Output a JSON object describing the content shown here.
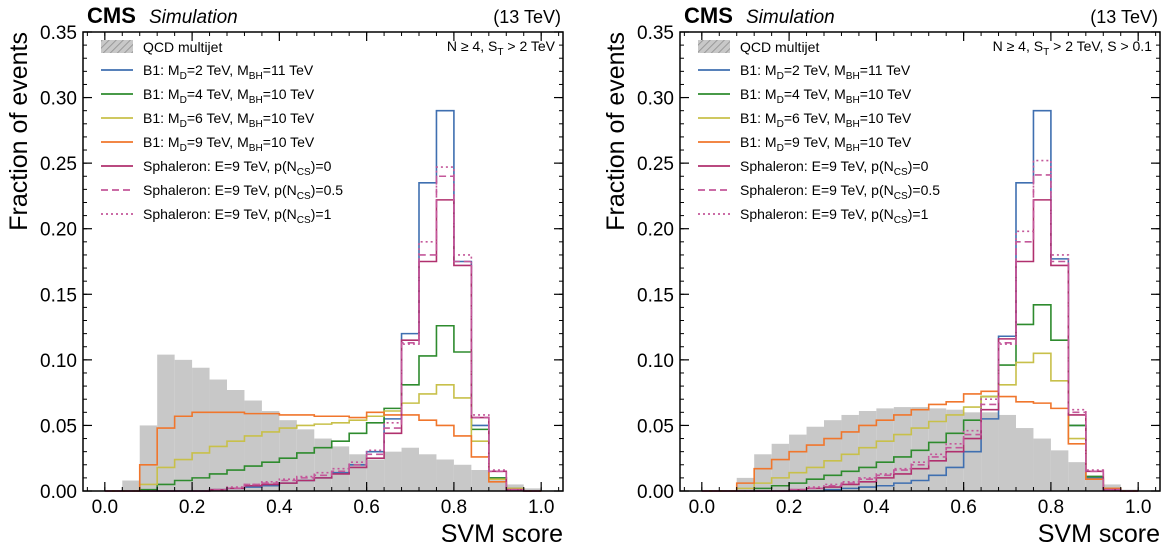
{
  "chart_data": [
    {
      "type": "histogram",
      "experiment": "CMS",
      "label": "Simulation",
      "energy": "(13 TeV)",
      "cut_label": "N ≥ 4, Sₜ > 2 TeV",
      "cut_parts": [
        {
          "t": "N ≥ 4, S",
          "s": null
        },
        {
          "t": "T",
          "s": "sub"
        },
        {
          "t": " > 2 TeV",
          "s": null
        }
      ],
      "xlabel": "SVM score",
      "ylabel": "Fraction of events",
      "xlim": [
        -0.05,
        1.05
      ],
      "ylim": [
        0,
        0.35
      ],
      "xticks": [
        "0.0",
        "0.2",
        "0.4",
        "0.6",
        "0.8",
        "1.0"
      ],
      "yticks": [
        "0.00",
        "0.05",
        "0.10",
        "0.15",
        "0.20",
        "0.25",
        "0.30",
        "0.35"
      ],
      "bin_edges": [
        0.0,
        0.04,
        0.08,
        0.12,
        0.16,
        0.2,
        0.24,
        0.28,
        0.32,
        0.36,
        0.4,
        0.44,
        0.48,
        0.52,
        0.56,
        0.6,
        0.64,
        0.68,
        0.72,
        0.76,
        0.8,
        0.84,
        0.88,
        0.92,
        0.96,
        1.0
      ],
      "background": {
        "name": "QCD multijet",
        "color": "#c8c8c8",
        "values": [
          0.0,
          0.008,
          0.05,
          0.104,
          0.1,
          0.094,
          0.085,
          0.077,
          0.069,
          0.061,
          0.054,
          0.047,
          0.04,
          0.034,
          0.028,
          0.024,
          0.03,
          0.033,
          0.028,
          0.024,
          0.02,
          0.016,
          0.01,
          0.005,
          0.002
        ]
      },
      "series": [
        {
          "name": "B1: M_D=2 TeV, M_BH=11 TeV",
          "label_parts": [
            {
              "t": "B1: M",
              "s": null
            },
            {
              "t": "D",
              "s": "sub"
            },
            {
              "t": "=2 TeV, M",
              "s": null
            },
            {
              "t": "BH",
              "s": "sub"
            },
            {
              "t": "=11 TeV",
              "s": null
            }
          ],
          "color": "#3f6fb0",
          "style": "solid",
          "values": [
            0.0,
            0.0,
            0.0,
            0.0,
            0.0,
            0.0,
            0.001,
            0.002,
            0.003,
            0.004,
            0.006,
            0.008,
            0.01,
            0.014,
            0.02,
            0.03,
            0.055,
            0.12,
            0.235,
            0.29,
            0.175,
            0.05,
            0.01,
            0.001,
            0.0
          ]
        },
        {
          "name": "B1: M_D=4 TeV, M_BH=10 TeV",
          "label_parts": [
            {
              "t": "B1: M",
              "s": null
            },
            {
              "t": "D",
              "s": "sub"
            },
            {
              "t": "=4 TeV, M",
              "s": null
            },
            {
              "t": "BH",
              "s": "sub"
            },
            {
              "t": "=10 TeV",
              "s": null
            }
          ],
          "color": "#2e8b2e",
          "style": "solid",
          "values": [
            0.0,
            0.0,
            0.001,
            0.005,
            0.008,
            0.01,
            0.013,
            0.016,
            0.019,
            0.022,
            0.025,
            0.029,
            0.033,
            0.038,
            0.044,
            0.052,
            0.063,
            0.081,
            0.103,
            0.126,
            0.106,
            0.047,
            0.01,
            0.002,
            0.0
          ]
        },
        {
          "name": "B1: M_D=6 TeV, M_BH=10 TeV",
          "label_parts": [
            {
              "t": "B1: M",
              "s": null
            },
            {
              "t": "D",
              "s": "sub"
            },
            {
              "t": "=6 TeV, M",
              "s": null
            },
            {
              "t": "BH",
              "s": "sub"
            },
            {
              "t": "=10 TeV",
              "s": null
            }
          ],
          "color": "#c8c04a",
          "style": "solid",
          "values": [
            0.0,
            0.0,
            0.005,
            0.018,
            0.024,
            0.029,
            0.034,
            0.038,
            0.042,
            0.045,
            0.048,
            0.05,
            0.051,
            0.052,
            0.054,
            0.057,
            0.061,
            0.067,
            0.074,
            0.081,
            0.071,
            0.038,
            0.009,
            0.002,
            0.0
          ]
        },
        {
          "name": "B1: M_D=9 TeV, M_BH=10 TeV",
          "label_parts": [
            {
              "t": "B1: M",
              "s": null
            },
            {
              "t": "D",
              "s": "sub"
            },
            {
              "t": "=9 TeV, M",
              "s": null
            },
            {
              "t": "BH",
              "s": "sub"
            },
            {
              "t": "=10 TeV",
              "s": null
            }
          ],
          "color": "#f0762c",
          "style": "solid",
          "values": [
            0.0,
            0.0,
            0.02,
            0.048,
            0.057,
            0.06,
            0.06,
            0.06,
            0.059,
            0.059,
            0.058,
            0.058,
            0.057,
            0.057,
            0.056,
            0.06,
            0.058,
            0.058,
            0.054,
            0.05,
            0.042,
            0.026,
            0.007,
            0.001,
            0.0
          ]
        },
        {
          "name": "Sphaleron: E=9 TeV, p(N_CS)=0",
          "label_parts": [
            {
              "t": "Sphaleron: E=9 TeV, p(N",
              "s": null
            },
            {
              "t": "CS",
              "s": "sub"
            },
            {
              "t": ")=0",
              "s": null
            }
          ],
          "color": "#b0306e",
          "style": "solid",
          "values": [
            0.0,
            0.0,
            0.0,
            0.0,
            0.0,
            0.0,
            0.001,
            0.002,
            0.004,
            0.005,
            0.006,
            0.008,
            0.01,
            0.013,
            0.018,
            0.025,
            0.044,
            0.115,
            0.175,
            0.222,
            0.172,
            0.056,
            0.015,
            0.001,
            0.0
          ]
        },
        {
          "name": "Sphaleron: E=9 TeV, p(N_CS)=0.5",
          "label_parts": [
            {
              "t": "Sphaleron: E=9 TeV, p(N",
              "s": null
            },
            {
              "t": "CS",
              "s": "sub"
            },
            {
              "t": ")=0.5",
              "s": null
            }
          ],
          "color": "#c4579a",
          "style": "dashed",
          "values": [
            0.0,
            0.0,
            0.0,
            0.0,
            0.0,
            0.0,
            0.001,
            0.002,
            0.005,
            0.006,
            0.008,
            0.01,
            0.012,
            0.015,
            0.02,
            0.028,
            0.048,
            0.113,
            0.18,
            0.24,
            0.175,
            0.056,
            0.015,
            0.001,
            0.0
          ]
        },
        {
          "name": "Sphaleron: E=9 TeV, p(N_CS)=1",
          "label_parts": [
            {
              "t": "Sphaleron: E=9 TeV, p(N",
              "s": null
            },
            {
              "t": "CS",
              "s": "sub"
            },
            {
              "t": ")=1",
              "s": null
            }
          ],
          "color": "#c4579a",
          "style": "dotted",
          "values": [
            0.0,
            0.0,
            0.0,
            0.0,
            0.0,
            0.0,
            0.001,
            0.003,
            0.005,
            0.007,
            0.009,
            0.011,
            0.014,
            0.017,
            0.022,
            0.031,
            0.052,
            0.112,
            0.19,
            0.247,
            0.18,
            0.058,
            0.016,
            0.001,
            0.0
          ]
        }
      ]
    },
    {
      "type": "histogram",
      "experiment": "CMS",
      "label": "Simulation",
      "energy": "(13 TeV)",
      "cut_label": "N ≥ 4, Sₜ > 2 TeV, S > 0.1",
      "cut_parts": [
        {
          "t": "N ≥ 4, S",
          "s": null
        },
        {
          "t": "T",
          "s": "sub"
        },
        {
          "t": " > 2 TeV, S > 0.1",
          "s": null
        }
      ],
      "xlabel": "SVM score",
      "ylabel": "Fraction of events",
      "xlim": [
        -0.05,
        1.05
      ],
      "ylim": [
        0,
        0.35
      ],
      "xticks": [
        "0.0",
        "0.2",
        "0.4",
        "0.6",
        "0.8",
        "1.0"
      ],
      "yticks": [
        "0.00",
        "0.05",
        "0.10",
        "0.15",
        "0.20",
        "0.25",
        "0.30",
        "0.35"
      ],
      "bin_edges": [
        0.0,
        0.04,
        0.08,
        0.12,
        0.16,
        0.2,
        0.24,
        0.28,
        0.32,
        0.36,
        0.4,
        0.44,
        0.48,
        0.52,
        0.56,
        0.6,
        0.64,
        0.68,
        0.72,
        0.76,
        0.8,
        0.84,
        0.88,
        0.92,
        0.96,
        1.0
      ],
      "background": {
        "name": "QCD multijet",
        "color": "#c8c8c8",
        "values": [
          0.0,
          0.0,
          0.01,
          0.028,
          0.036,
          0.043,
          0.049,
          0.054,
          0.058,
          0.061,
          0.063,
          0.064,
          0.064,
          0.063,
          0.062,
          0.06,
          0.06,
          0.058,
          0.048,
          0.04,
          0.031,
          0.022,
          0.012,
          0.005,
          0.001
        ]
      },
      "series": [
        {
          "name": "B1: M_D=2 TeV, M_BH=11 TeV",
          "label_parts": [
            {
              "t": "B1: M",
              "s": null
            },
            {
              "t": "D",
              "s": "sub"
            },
            {
              "t": "=2 TeV, M",
              "s": null
            },
            {
              "t": "BH",
              "s": "sub"
            },
            {
              "t": "=11 TeV",
              "s": null
            }
          ],
          "color": "#3f6fb0",
          "style": "solid",
          "values": [
            0.0,
            0.0,
            0.0,
            0.0,
            0.0,
            0.0,
            0.0,
            0.001,
            0.002,
            0.003,
            0.004,
            0.006,
            0.008,
            0.012,
            0.018,
            0.03,
            0.055,
            0.118,
            0.235,
            0.29,
            0.177,
            0.05,
            0.01,
            0.001,
            0.0
          ]
        },
        {
          "name": "B1: M_D=4 TeV, M_BH=10 TeV",
          "label_parts": [
            {
              "t": "B1: M",
              "s": null
            },
            {
              "t": "D",
              "s": "sub"
            },
            {
              "t": "=4 TeV, M",
              "s": null
            },
            {
              "t": "BH",
              "s": "sub"
            },
            {
              "t": "=10 TeV",
              "s": null
            }
          ],
          "color": "#2e8b2e",
          "style": "solid",
          "values": [
            0.0,
            0.0,
            0.0,
            0.002,
            0.004,
            0.006,
            0.009,
            0.012,
            0.015,
            0.018,
            0.022,
            0.026,
            0.031,
            0.037,
            0.044,
            0.054,
            0.072,
            0.096,
            0.127,
            0.142,
            0.115,
            0.05,
            0.011,
            0.002,
            0.0
          ]
        },
        {
          "name": "B1: M_D=6 TeV, M_BH=10 TeV",
          "label_parts": [
            {
              "t": "B1: M",
              "s": null
            },
            {
              "t": "D",
              "s": "sub"
            },
            {
              "t": "=6 TeV, M",
              "s": null
            },
            {
              "t": "BH",
              "s": "sub"
            },
            {
              "t": "=10 TeV",
              "s": null
            }
          ],
          "color": "#c8c04a",
          "style": "solid",
          "values": [
            0.0,
            0.0,
            0.002,
            0.006,
            0.01,
            0.014,
            0.018,
            0.023,
            0.028,
            0.033,
            0.038,
            0.043,
            0.048,
            0.053,
            0.058,
            0.064,
            0.072,
            0.081,
            0.098,
            0.105,
            0.084,
            0.04,
            0.009,
            0.002,
            0.0
          ]
        },
        {
          "name": "B1: M_D=9 TeV, M_BH=10 TeV",
          "label_parts": [
            {
              "t": "B1: M",
              "s": null
            },
            {
              "t": "D",
              "s": "sub"
            },
            {
              "t": "=9 TeV, M",
              "s": null
            },
            {
              "t": "BH",
              "s": "sub"
            },
            {
              "t": "=10 TeV",
              "s": null
            }
          ],
          "color": "#f0762c",
          "style": "solid",
          "values": [
            0.0,
            0.0,
            0.006,
            0.017,
            0.024,
            0.03,
            0.035,
            0.04,
            0.045,
            0.05,
            0.054,
            0.058,
            0.062,
            0.066,
            0.068,
            0.074,
            0.076,
            0.072,
            0.068,
            0.067,
            0.063,
            0.036,
            0.009,
            0.002,
            0.0
          ]
        },
        {
          "name": "Sphaleron: E=9 TeV, p(N_CS)=0",
          "label_parts": [
            {
              "t": "Sphaleron: E=9 TeV, p(N",
              "s": null
            },
            {
              "t": "CS",
              "s": "sub"
            },
            {
              "t": ")=0",
              "s": null
            }
          ],
          "color": "#b0306e",
          "style": "solid",
          "values": [
            0.0,
            0.0,
            0.0,
            0.0,
            0.0,
            0.001,
            0.002,
            0.003,
            0.005,
            0.007,
            0.01,
            0.013,
            0.017,
            0.023,
            0.03,
            0.04,
            0.062,
            0.116,
            0.175,
            0.222,
            0.172,
            0.058,
            0.015,
            0.001,
            0.0
          ]
        },
        {
          "name": "Sphaleron: E=9 TeV, p(N_CS)=0.5",
          "label_parts": [
            {
              "t": "Sphaleron: E=9 TeV, p(N",
              "s": null
            },
            {
              "t": "CS",
              "s": "sub"
            },
            {
              "t": ")=0.5",
              "s": null
            }
          ],
          "color": "#c4579a",
          "style": "dashed",
          "values": [
            0.0,
            0.0,
            0.0,
            0.0,
            0.0,
            0.001,
            0.002,
            0.004,
            0.006,
            0.009,
            0.012,
            0.016,
            0.02,
            0.026,
            0.033,
            0.043,
            0.066,
            0.113,
            0.19,
            0.241,
            0.175,
            0.06,
            0.015,
            0.001,
            0.0
          ]
        },
        {
          "name": "Sphaleron: E=9 TeV, p(N_CS)=1",
          "label_parts": [
            {
              "t": "Sphaleron: E=9 TeV, p(N",
              "s": null
            },
            {
              "t": "CS",
              "s": "sub"
            },
            {
              "t": ")=1",
              "s": null
            }
          ],
          "color": "#c4579a",
          "style": "dotted",
          "values": [
            0.0,
            0.0,
            0.0,
            0.0,
            0.0,
            0.001,
            0.003,
            0.005,
            0.007,
            0.01,
            0.013,
            0.017,
            0.022,
            0.028,
            0.036,
            0.046,
            0.07,
            0.112,
            0.198,
            0.252,
            0.18,
            0.062,
            0.016,
            0.001,
            0.0
          ]
        }
      ]
    }
  ]
}
